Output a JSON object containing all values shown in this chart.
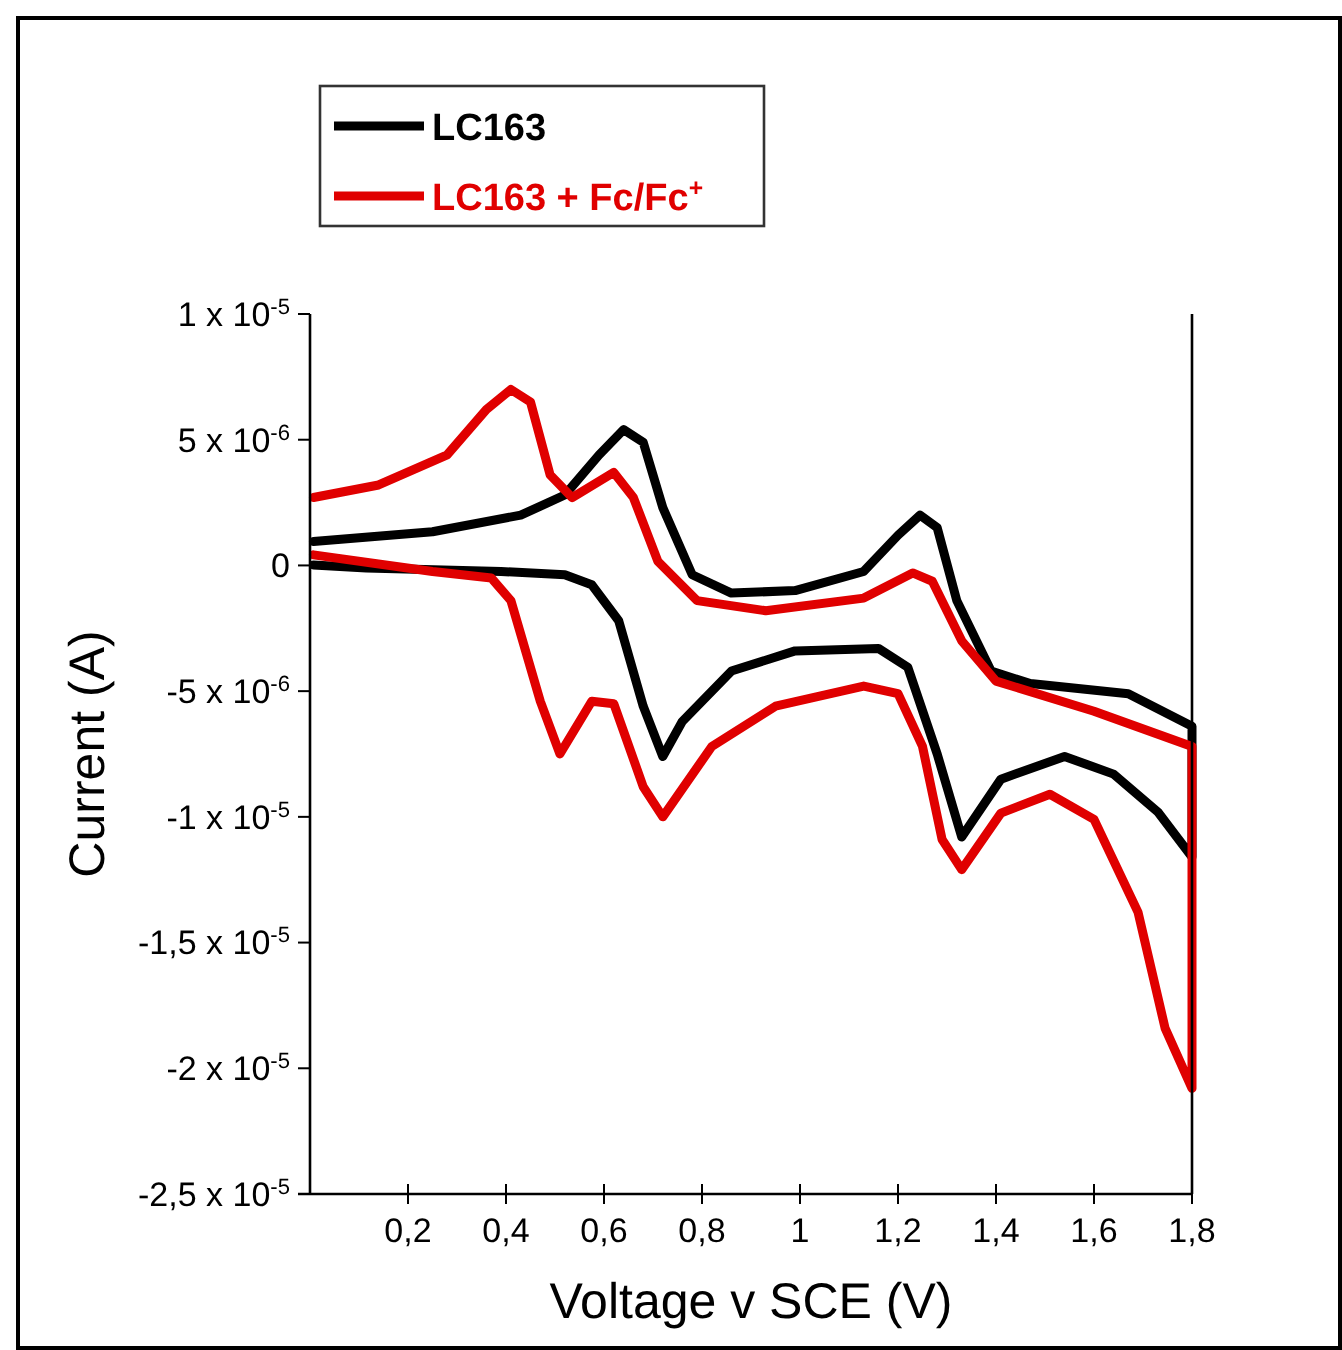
{
  "chart_data": {
    "type": "line",
    "xlabel": "Voltage v SCE (V)",
    "ylabel": "Current (A)",
    "xlim": [
      0,
      1.8
    ],
    "ylim": [
      -2.5e-05,
      1e-05
    ],
    "xticks": [
      {
        "value": 0.2,
        "label": "0,2"
      },
      {
        "value": 0.4,
        "label": "0,4"
      },
      {
        "value": 0.6,
        "label": "0,6"
      },
      {
        "value": 0.8,
        "label": "0,8"
      },
      1,
      {
        "value": 1.2,
        "label": "1,2"
      },
      {
        "value": 1.4,
        "label": "1,4"
      },
      {
        "value": 1.6,
        "label": "1,6"
      },
      {
        "value": 1.8,
        "label": "1,8"
      }
    ],
    "yticks": [
      {
        "value": 1e-05,
        "label": "1 x 10$^{-5}$"
      },
      {
        "value": 5e-06,
        "label": "5 x 10$^{-6}$"
      },
      0,
      {
        "value": -5e-06,
        "label": "-5 x 10$^{-6}$"
      },
      {
        "value": -1e-05,
        "label": "-1 x 10$^{-5}$"
      },
      {
        "value": -1.5e-05,
        "label": "-1,5 x 10$^{-5}$"
      },
      {
        "value": -2e-05,
        "label": "-2 x 10$^{-5}$"
      },
      {
        "value": -2.5e-05,
        "label": "-2,5 x 10$^{-5}$"
      }
    ],
    "grid": false,
    "legend": "top left",
    "marker": "none",
    "line_style": "solid",
    "series": [
      {
        "name": "LC163",
        "color": "#000000",
        "x": [
          0.007,
          0.25,
          0.43,
          0.52,
          0.59,
          0.64,
          0.68,
          0.72,
          0.78,
          0.86,
          0.99,
          1.13,
          1.2,
          1.245,
          1.28,
          1.32,
          1.39,
          1.47,
          1.67,
          1.8,
          1.8,
          1.73,
          1.64,
          1.54,
          1.41,
          1.33,
          1.28,
          1.22,
          1.16,
          0.99,
          0.86,
          0.76,
          0.72,
          0.68,
          0.63,
          0.575,
          0.52,
          0.39,
          0.115,
          0.007
        ],
        "values": [
          9.5e-07,
          1.34e-06,
          2e-06,
          2.8e-06,
          4.4e-06,
          5.4e-06,
          4.9e-06,
          2.3e-06,
          -3.7e-07,
          -1.1e-06,
          -1e-06,
          -2.4e-07,
          1.2e-06,
          2e-06,
          1.5e-06,
          -1.4e-06,
          -4.2e-06,
          -4.7e-06,
          -5.1e-06,
          -6.4e-06,
          -1.16e-05,
          -9.8e-06,
          -8.3e-06,
          -7.6e-06,
          -8.5e-06,
          -1.08e-05,
          -7.5e-06,
          -4.05e-06,
          -3.3e-06,
          -3.4e-06,
          -4.2e-06,
          -6.2e-06,
          -7.6e-06,
          -5.6e-06,
          -2.2e-06,
          -7.7e-07,
          -3.7e-07,
          -2.4e-07,
          -1e-07,
          2e-08
        ]
      },
      {
        "name": "LC163 + Fc/Fc$^{+}$",
        "color": "#e00000",
        "x": [
          0.007,
          0.14,
          0.28,
          0.36,
          0.41,
          0.45,
          0.49,
          0.535,
          0.62,
          0.66,
          0.71,
          0.79,
          0.93,
          1.13,
          1.23,
          1.27,
          1.33,
          1.4,
          1.6,
          1.8,
          1.8,
          1.745,
          1.69,
          1.6,
          1.51,
          1.41,
          1.33,
          1.29,
          1.25,
          1.2,
          1.13,
          0.95,
          0.82,
          0.72,
          0.68,
          0.62,
          0.575,
          0.51,
          0.47,
          0.41,
          0.37,
          0.25,
          0.007
        ],
        "values": [
          2.7e-06,
          3.2e-06,
          4.4e-06,
          6.2e-06,
          7e-06,
          6.5e-06,
          3.6e-06,
          2.7e-06,
          3.7e-06,
          2.7e-06,
          1.6e-07,
          -1.4e-06,
          -1.8e-06,
          -1.3e-06,
          -3e-07,
          -6.3e-07,
          -3e-06,
          -4.6e-06,
          -5.8e-06,
          -7.2e-06,
          -2.08e-05,
          -1.84e-05,
          -1.38e-05,
          -1.01e-05,
          -9.1e-06,
          -9.85e-06,
          -1.21e-05,
          -1.09e-05,
          -7.2e-06,
          -5.1e-06,
          -4.8e-06,
          -5.6e-06,
          -7.2e-06,
          -1e-05,
          -8.8e-06,
          -5.5e-06,
          -5.4e-06,
          -7.5e-06,
          -5.4e-06,
          -1.4e-06,
          -5e-07,
          -2.4e-07,
          4.2e-07
        ]
      }
    ]
  }
}
